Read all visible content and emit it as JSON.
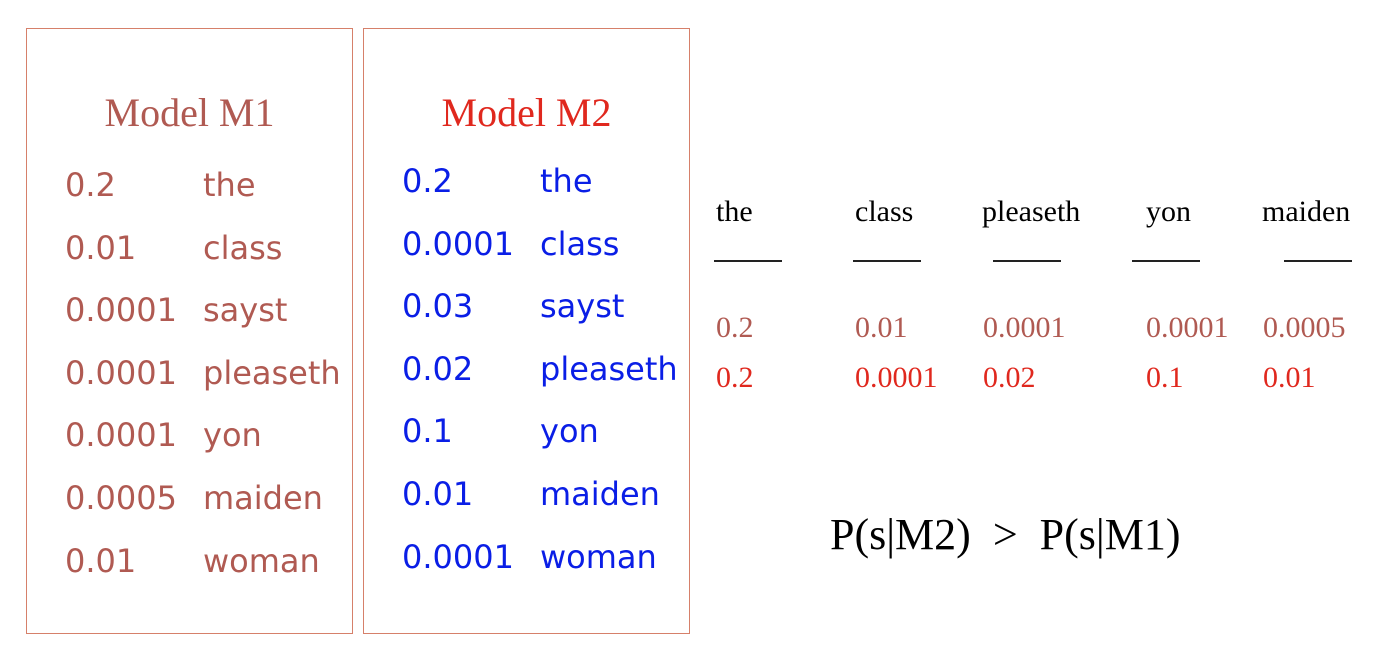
{
  "colors": {
    "m1": "#b05a52",
    "m2_title": "#e0281e",
    "m2_values": "#0a1ee6",
    "m2_row": "#e0281e",
    "border": "#d6806a"
  },
  "model_m1": {
    "title": "Model M1",
    "rows": [
      {
        "prob": "0.2",
        "word": "the"
      },
      {
        "prob": "0.01",
        "word": "class"
      },
      {
        "prob": "0.0001",
        "word": "sayst"
      },
      {
        "prob": "0.0001",
        "word": "pleaseth"
      },
      {
        "prob": "0.0001",
        "word": "yon"
      },
      {
        "prob": "0.0005",
        "word": "maiden"
      },
      {
        "prob": "0.01",
        "word": "woman"
      }
    ]
  },
  "model_m2": {
    "title": "Model M2",
    "rows": [
      {
        "prob": "0.2",
        "word": "the"
      },
      {
        "prob": "0.0001",
        "word": "class"
      },
      {
        "prob": "0.03",
        "word": "sayst"
      },
      {
        "prob": "0.02",
        "word": "pleaseth"
      },
      {
        "prob": "0.1",
        "word": "yon"
      },
      {
        "prob": "0.01",
        "word": "maiden"
      },
      {
        "prob": "0.0001",
        "word": "woman"
      }
    ]
  },
  "sentence": {
    "words": [
      "the",
      "class",
      "pleaseth",
      "yon",
      "maiden"
    ],
    "m1_probs": [
      "0.2",
      "0.01",
      "0.0001",
      "0.0001",
      "0.0005"
    ],
    "m2_probs": [
      "0.2",
      "0.0001",
      "0.02",
      "0.1",
      "0.01"
    ]
  },
  "comparison": "P(s|M2)  >  P(s|M1)"
}
